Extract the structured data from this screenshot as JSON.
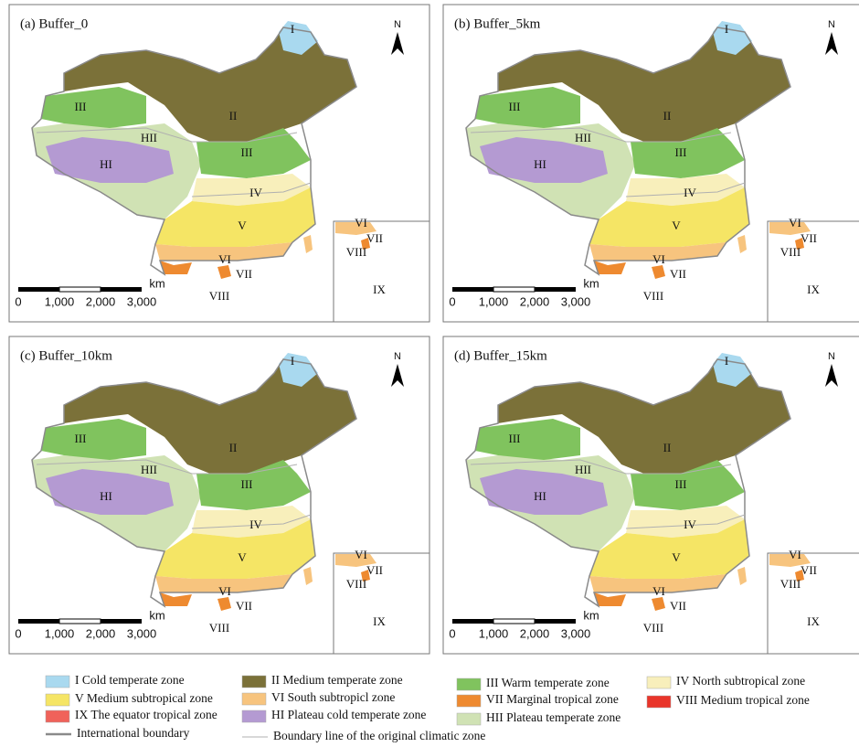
{
  "panels": [
    {
      "title": "(a) Buffer_0"
    },
    {
      "title": "(b) Buffer_5km"
    },
    {
      "title": "(c) Buffer_10km"
    },
    {
      "title": "(d) Buffer_15km"
    }
  ],
  "map": {
    "north": "N",
    "zone_labels": [
      "I",
      "II",
      "III",
      "III",
      "HII",
      "HI",
      "IV",
      "V",
      "VI",
      "VII",
      "VIII"
    ],
    "inset_labels": [
      "VI",
      "VII",
      "VIII",
      "IX"
    ],
    "scale": {
      "ticks": [
        "0",
        "1,000",
        "2,000",
        "3,000"
      ],
      "unit": "km"
    }
  },
  "legend": {
    "zones": [
      {
        "label": "I Cold temperate zone",
        "color": "#a9d9ef"
      },
      {
        "label": "II Medium temperate zone",
        "color": "#7b7139"
      },
      {
        "label": "III Warm temperate zone",
        "color": "#80c35e"
      },
      {
        "label": "IV North subtropical zone",
        "color": "#f8efbb"
      },
      {
        "label": "V Medium subtropical zone",
        "color": "#f5e565"
      },
      {
        "label": "VI South subtropicl zone",
        "color": "#f7c47e"
      },
      {
        "label": "VII Marginal tropical zone",
        "color": "#ee8a30"
      },
      {
        "label": "VIII Medium tropical zone",
        "color": "#e9352a"
      },
      {
        "label": "IX The equator tropical zone",
        "color": "#f0625a"
      },
      {
        "label": "HI Plateau cold temperate zone",
        "color": "#b49ad2"
      },
      {
        "label": "HII Plateau temperate zone",
        "color": "#d0e2b4"
      }
    ],
    "lines": [
      {
        "label": "International boundary",
        "color": "#8a8a8a"
      },
      {
        "label": "Boundary line of the original climatic zone",
        "color": "#b0b0b0"
      }
    ]
  }
}
